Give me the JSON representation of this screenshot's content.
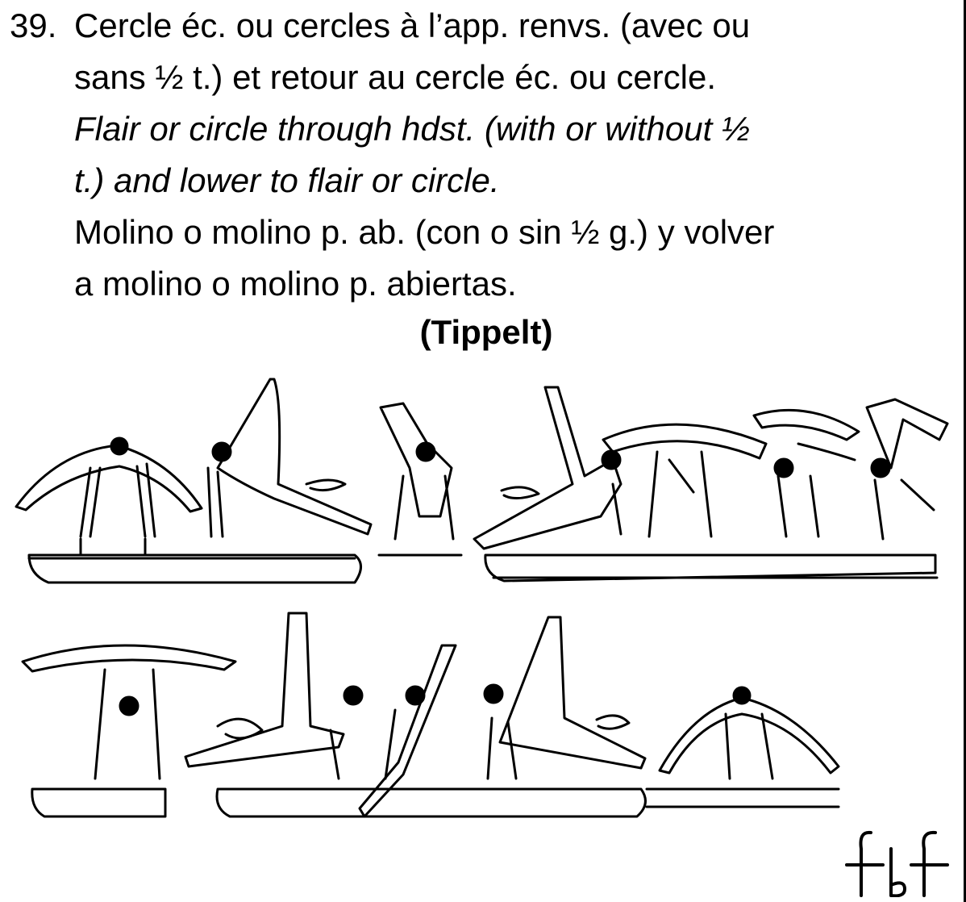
{
  "element": {
    "number": "39.",
    "fr_lines": [
      "Cercle éc. ou cercles à l’app. renvs. (avec ou",
      "sans ½ t.) et retour au cercle éc. ou cercle."
    ],
    "en_lines": [
      "Flair or circle through hdst. (with or without ½",
      "t.) and lower to flair or circle."
    ],
    "es_lines": [
      "Molino o molino p. ab. (con o sin ½ g.) y volver",
      "a molino o molino p. abiertas."
    ],
    "credit": "(Tippelt)"
  },
  "logo": {
    "text": "fbf"
  }
}
